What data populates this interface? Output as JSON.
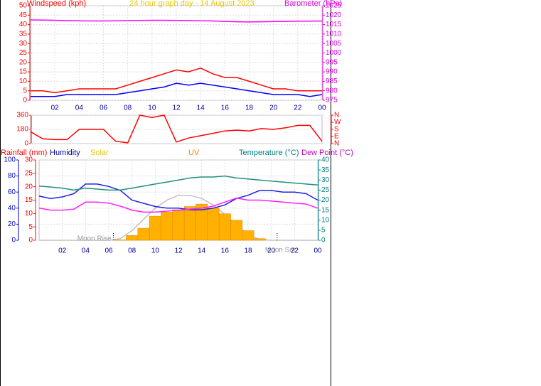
{
  "chart_data": [
    {
      "type": "line",
      "title": "24 hour graph day - 14 August 2023",
      "ylabel": "Windspeed (kph)",
      "y2label": "Barometer (hPa)",
      "title_color": "#e6c800",
      "ylabel_color": "#ff0000",
      "y2label_color": "#e000e0",
      "x": [
        0,
        1,
        2,
        3,
        4,
        5,
        6,
        7,
        8,
        9,
        10,
        11,
        12,
        13,
        14,
        15,
        16,
        17,
        18,
        19,
        20,
        21,
        22,
        23,
        24
      ],
      "xlim": [
        0,
        24
      ],
      "xticks": [
        {
          "value": 2,
          "label": "02"
        },
        {
          "value": 4,
          "label": "04"
        },
        {
          "value": 6,
          "label": "06"
        },
        {
          "value": 8,
          "label": "08"
        },
        10,
        12,
        14,
        16,
        18,
        20,
        22,
        {
          "value": 24,
          "label": "00"
        }
      ],
      "ylim": [
        0,
        50
      ],
      "yticks": [
        0,
        5,
        10,
        15,
        20,
        25,
        30,
        35,
        40,
        45,
        50
      ],
      "y2lim": [
        975,
        1025
      ],
      "y2ticks": [
        975,
        980,
        985,
        990,
        995,
        1000,
        1005,
        1010,
        1015,
        1020,
        1025
      ],
      "grid": true,
      "series": [
        {
          "color": "#ff0000",
          "values": [
            5,
            5,
            4,
            5,
            6,
            6,
            6,
            6,
            8,
            10,
            12,
            14,
            16,
            15,
            17,
            14,
            12,
            12,
            10,
            8,
            6,
            6,
            5,
            5,
            5
          ]
        },
        {
          "color": "#0000ff",
          "values": [
            2,
            2,
            2,
            3,
            3,
            3,
            3,
            3,
            4,
            5,
            6,
            7,
            9,
            8,
            9,
            8,
            7,
            6,
            5,
            4,
            3,
            3,
            3,
            2,
            3
          ]
        },
        {
          "color": "#ff00ff",
          "axis": "y2",
          "values": [
            1017.5,
            1017.4,
            1017.3,
            1017.1,
            1017,
            1016.9,
            1016.9,
            1017,
            1017.1,
            1017.2,
            1017.3,
            1017.3,
            1017.2,
            1017.1,
            1017,
            1016.9,
            1016.7,
            1016.5,
            1016.4,
            1016.5,
            1016.6,
            1016.7,
            1016.8,
            1016.8,
            1016.9
          ]
        }
      ]
    },
    {
      "type": "line",
      "x": [
        0,
        1,
        2,
        3,
        4,
        5,
        6,
        7,
        8,
        9,
        10,
        11,
        12,
        13,
        14,
        15,
        16,
        17,
        18,
        19,
        20,
        21,
        22,
        23,
        24
      ],
      "xlim": [
        0,
        24
      ],
      "ylim": [
        0,
        360
      ],
      "yticks": [
        0,
        180,
        360
      ],
      "y2lim": [
        0,
        360
      ],
      "y2ticks": [
        {
          "value": 0,
          "label": "N"
        },
        {
          "value": 90,
          "label": "E"
        },
        {
          "value": 180,
          "label": "S"
        },
        {
          "value": 270,
          "label": "W"
        },
        {
          "value": 360,
          "label": "N"
        }
      ],
      "grid": true,
      "series": [
        {
          "color": "#ff0000",
          "values": [
            150,
            60,
            50,
            50,
            180,
            180,
            180,
            30,
            10,
            360,
            330,
            360,
            20,
            70,
            100,
            130,
            160,
            170,
            160,
            190,
            180,
            200,
            230,
            230,
            30
          ]
        }
      ]
    },
    {
      "type": "line",
      "legend": [
        {
          "text": "Rainfall (mm)",
          "color": "#ff0000"
        },
        {
          "text": "Humidity",
          "color": "#0000a0"
        },
        {
          "text": "Solar",
          "color": "#e6c800"
        },
        {
          "text": "UV",
          "color": "#ff8000"
        },
        {
          "text": "Temperature (°C)",
          "color": "#008080"
        },
        {
          "text": "Dew Point (°C)",
          "color": "#c000c0"
        }
      ],
      "x": [
        0,
        1,
        2,
        3,
        4,
        5,
        6,
        7,
        8,
        9,
        10,
        11,
        12,
        13,
        14,
        15,
        16,
        17,
        18,
        19,
        20,
        21,
        22,
        23,
        24
      ],
      "xlim": [
        0,
        24
      ],
      "xticks": [
        {
          "value": 2,
          "label": "02"
        },
        {
          "value": 4,
          "label": "04"
        },
        {
          "value": 6,
          "label": "06"
        },
        {
          "value": 8,
          "label": "08"
        },
        10,
        12,
        14,
        16,
        18,
        20,
        22,
        {
          "value": 24,
          "label": "00"
        }
      ],
      "ylim": [
        0,
        100
      ],
      "yticks": [
        0,
        20,
        40,
        60,
        80,
        100
      ],
      "y2lim": [
        0,
        40
      ],
      "y2ticks": [
        0,
        5,
        10,
        15,
        20,
        25,
        30,
        35,
        40
      ],
      "y3lim": [
        0,
        30
      ],
      "y3ticks": [
        0,
        5,
        10,
        15,
        20,
        25,
        30
      ],
      "y4lim": [
        0,
        1000
      ],
      "grid": true,
      "annotations": [
        {
          "text": "Moon Rise",
          "x": 6.4,
          "color": "#999999"
        },
        {
          "text": "Moon Set",
          "x": 20.5,
          "color": "#999999"
        }
      ],
      "series": [
        {
          "color": "#c0c0c0",
          "axis": "y4",
          "values": [
            0,
            0,
            0,
            0,
            0,
            0,
            0,
            20,
            120,
            260,
            400,
            500,
            560,
            560,
            520,
            440,
            320,
            190,
            70,
            10,
            0,
            0,
            0,
            0,
            0
          ]
        },
        {
          "color": "#ffb000",
          "axis": "y4",
          "style": "bars",
          "values": [
            0,
            0,
            0,
            0,
            0,
            0,
            0,
            5,
            60,
            150,
            300,
            350,
            380,
            420,
            450,
            400,
            330,
            250,
            120,
            20,
            0,
            0,
            0,
            0,
            0
          ]
        },
        {
          "color": "#2020e0",
          "values": [
            55,
            52,
            54,
            58,
            70,
            70,
            67,
            62,
            50,
            46,
            42,
            40,
            40,
            38,
            38,
            40,
            44,
            52,
            56,
            62,
            62,
            60,
            60,
            58,
            50
          ]
        },
        {
          "color": "#209080",
          "axis": "y2",
          "values": [
            27,
            26.5,
            26,
            25,
            26,
            25.5,
            25,
            25,
            26,
            27,
            28,
            29,
            30,
            31,
            31.5,
            31.5,
            32,
            31,
            30.5,
            30,
            29.5,
            29,
            28.5,
            28,
            27.5
          ]
        },
        {
          "color": "#ff20ff",
          "axis": "y2",
          "values": [
            16,
            15,
            15,
            15.5,
            19,
            19,
            18.5,
            17,
            15,
            14,
            14,
            14.5,
            15,
            15.5,
            16,
            17,
            19,
            21,
            20,
            20,
            19.5,
            19,
            18.5,
            18,
            16
          ]
        }
      ]
    }
  ]
}
